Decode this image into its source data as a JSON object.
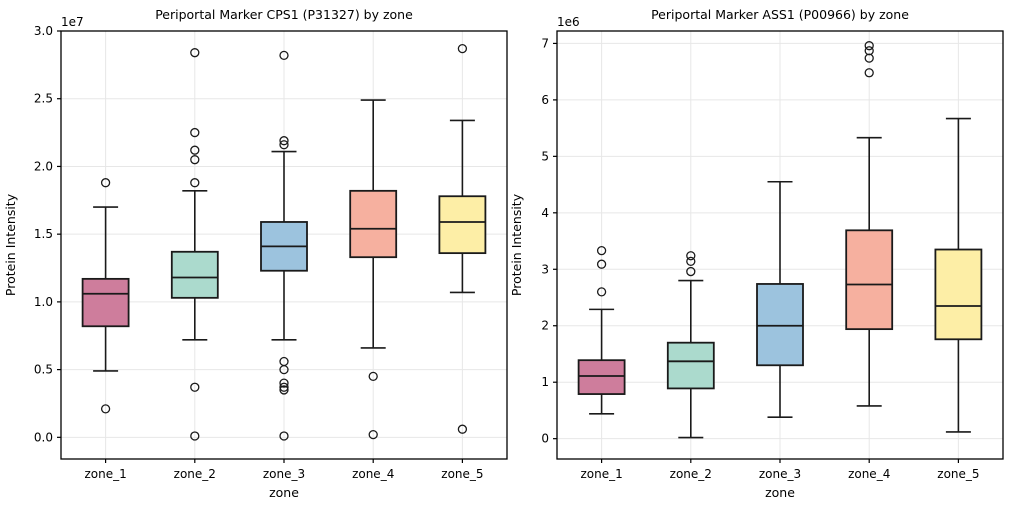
{
  "figure": {
    "background": "#ffffff",
    "grid_color": "#e7e7e7",
    "spine_color": "#000000",
    "box_edge_color": "#1a1a1a",
    "text_color": "#000000"
  },
  "chart_data": [
    {
      "type": "box",
      "title": "Periportal Marker CPS1 (P31327) by zone",
      "xlabel": "zone",
      "ylabel": "Protein Intensity",
      "offset_label": "1e7",
      "unit_multiplier": 10000000,
      "ylim": [
        -0.16,
        3.0
      ],
      "yticks": [
        0.0,
        0.5,
        1.0,
        1.5,
        2.0,
        2.5,
        3.0
      ],
      "ytick_labels": [
        "0.0",
        "0.5",
        "1.0",
        "1.5",
        "2.0",
        "2.5",
        "3.0"
      ],
      "grid": true,
      "legend": false,
      "categories": [
        "zone_1",
        "zone_2",
        "zone_3",
        "zone_4",
        "zone_5"
      ],
      "box_colors": [
        "#CE7D9C",
        "#ABDACD",
        "#9CC3DE",
        "#F6B09F",
        "#FDEEA6"
      ],
      "boxes": [
        {
          "category": "zone_1",
          "whisker_low": 0.49,
          "q1": 0.82,
          "median": 1.06,
          "q3": 1.17,
          "whisker_high": 1.7,
          "outliers": [
            1.88,
            0.21
          ]
        },
        {
          "category": "zone_2",
          "whisker_low": 0.72,
          "q1": 1.03,
          "median": 1.18,
          "q3": 1.37,
          "whisker_high": 1.82,
          "outliers": [
            2.84,
            2.25,
            2.12,
            2.05,
            1.88,
            0.37,
            0.01
          ]
        },
        {
          "category": "zone_3",
          "whisker_low": 0.72,
          "q1": 1.23,
          "median": 1.41,
          "q3": 1.59,
          "whisker_high": 2.11,
          "outliers": [
            2.82,
            2.19,
            2.16,
            0.56,
            0.5,
            0.4,
            0.37,
            0.35,
            0.01
          ]
        },
        {
          "category": "zone_4",
          "whisker_low": 0.66,
          "q1": 1.33,
          "median": 1.54,
          "q3": 1.82,
          "whisker_high": 2.49,
          "outliers": [
            0.45,
            0.02
          ]
        },
        {
          "category": "zone_5",
          "whisker_low": 1.07,
          "q1": 1.36,
          "median": 1.59,
          "q3": 1.78,
          "whisker_high": 2.34,
          "outliers": [
            2.87,
            0.06
          ]
        }
      ]
    },
    {
      "type": "box",
      "title": "Periportal Marker ASS1 (P00966) by zone",
      "xlabel": "zone",
      "ylabel": "Protein Intensity",
      "offset_label": "1e6",
      "unit_multiplier": 1000000,
      "ylim": [
        -0.36,
        7.22
      ],
      "yticks": [
        0,
        1,
        2,
        3,
        4,
        5,
        6,
        7
      ],
      "ytick_labels": [
        "0",
        "1",
        "2",
        "3",
        "4",
        "5",
        "6",
        "7"
      ],
      "grid": true,
      "legend": false,
      "categories": [
        "zone_1",
        "zone_2",
        "zone_3",
        "zone_4",
        "zone_5"
      ],
      "box_colors": [
        "#CE7D9C",
        "#ABDACD",
        "#9CC3DE",
        "#F6B09F",
        "#FDEEA6"
      ],
      "boxes": [
        {
          "category": "zone_1",
          "whisker_low": 0.44,
          "q1": 0.79,
          "median": 1.11,
          "q3": 1.39,
          "whisker_high": 2.29,
          "outliers": [
            3.33,
            3.09,
            2.6
          ]
        },
        {
          "category": "zone_2",
          "whisker_low": 0.02,
          "q1": 0.89,
          "median": 1.37,
          "q3": 1.7,
          "whisker_high": 2.8,
          "outliers": [
            3.24,
            3.14,
            2.96
          ]
        },
        {
          "category": "zone_3",
          "whisker_low": 0.38,
          "q1": 1.3,
          "median": 2.0,
          "q3": 2.74,
          "whisker_high": 4.55,
          "outliers": []
        },
        {
          "category": "zone_4",
          "whisker_low": 0.58,
          "q1": 1.94,
          "median": 2.73,
          "q3": 3.69,
          "whisker_high": 5.33,
          "outliers": [
            6.96,
            6.87,
            6.74,
            6.48
          ]
        },
        {
          "category": "zone_5",
          "whisker_low": 0.12,
          "q1": 1.76,
          "median": 2.35,
          "q3": 3.35,
          "whisker_high": 5.67,
          "outliers": []
        }
      ]
    }
  ]
}
